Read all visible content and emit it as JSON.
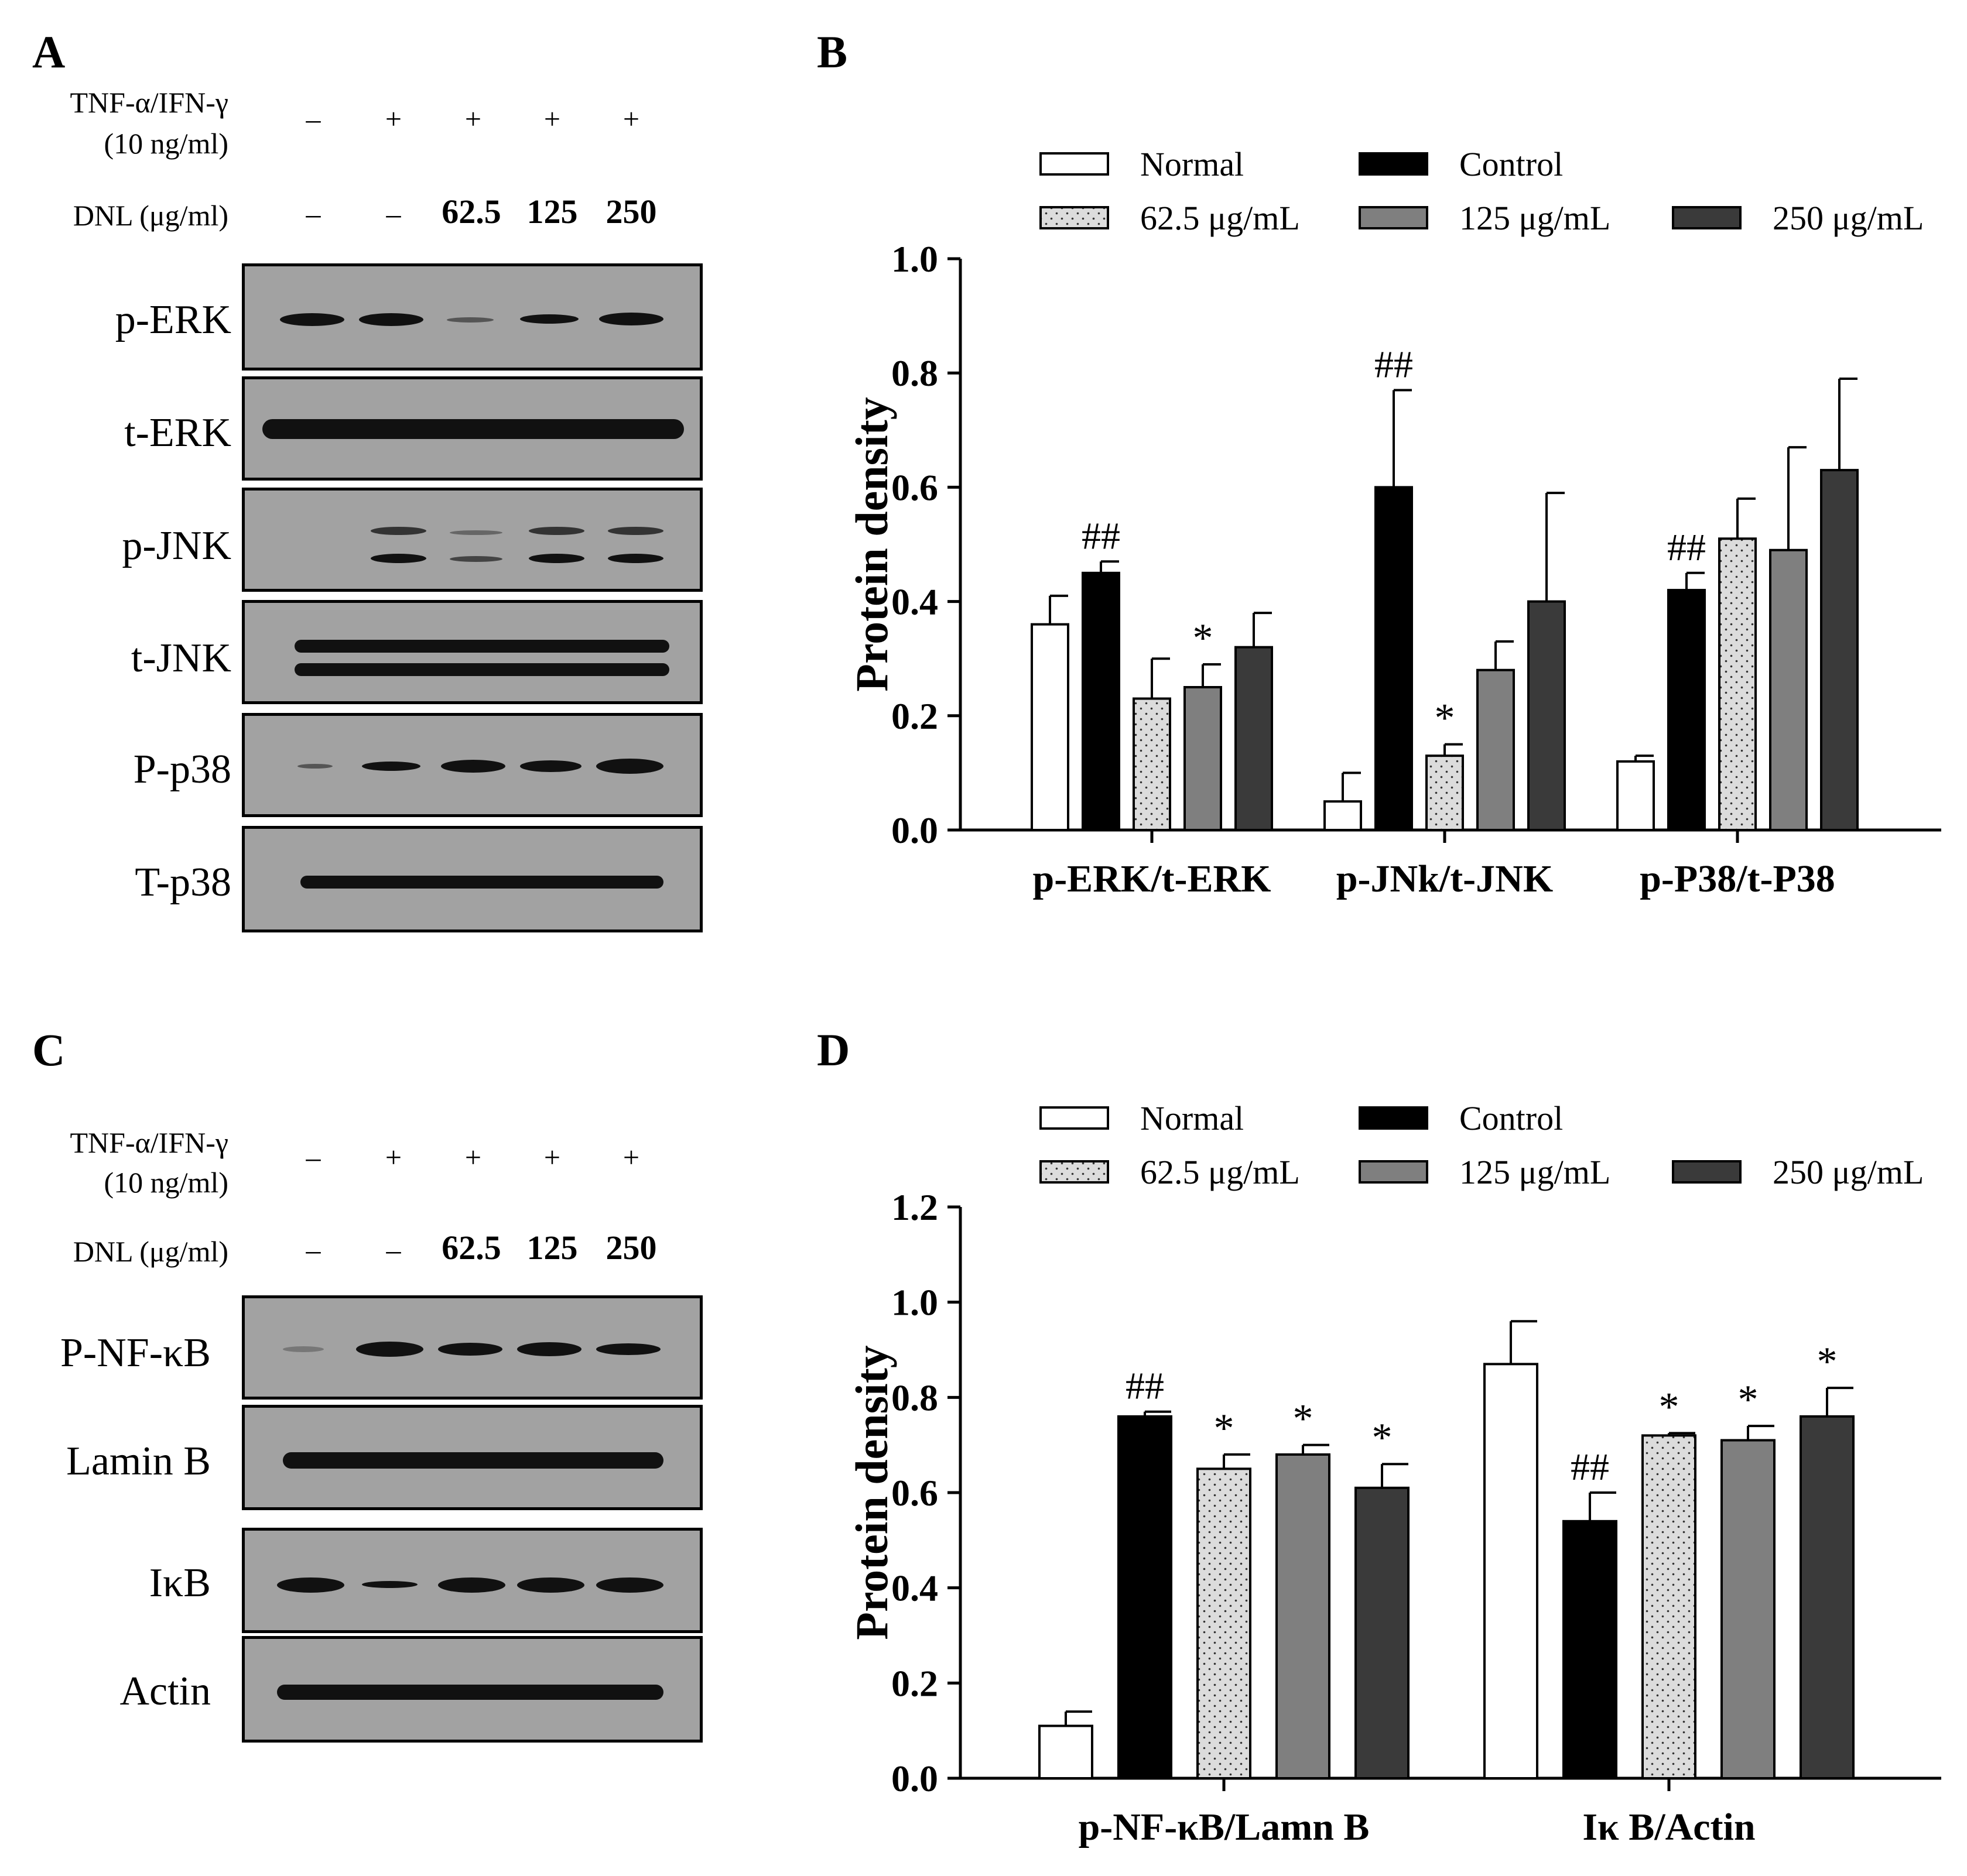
{
  "panels": {
    "a": "A",
    "b": "B",
    "c": "C",
    "d": "D"
  },
  "conditions": {
    "tnf_label_1": "TNF-α/IFN-γ",
    "tnf_label_2": "(10 ng/ml)",
    "dnl_label": "DNL (μg/ml)",
    "tnf_values": [
      "–",
      "+",
      "+",
      "+",
      "+"
    ],
    "dnl_values": [
      "–",
      "–",
      "62.5",
      "125",
      "250"
    ]
  },
  "blots_a": [
    "p-ERK",
    "t-ERK",
    "p-JNK",
    "t-JNK",
    "P-p38",
    "T-p38"
  ],
  "blots_c": [
    "P-NF-κB",
    "Lamin B",
    "IκB",
    "Actin"
  ],
  "legend": [
    "Normal",
    "Control",
    "62.5 μg/mL",
    "125 μg/mL",
    "250 μg/mL"
  ],
  "colors": {
    "normal": "#ffffff",
    "control": "#000000",
    "c62": "#dcdcdc",
    "c125": "#7f7f7f",
    "c250": "#3a3a3a"
  },
  "chart_data": [
    {
      "type": "bar",
      "panel": "B",
      "ylabel": "Protein density",
      "ylim": [
        0,
        1.0
      ],
      "yticks": [
        "0.0",
        "0.2",
        "0.4",
        "0.6",
        "0.8",
        "1.0"
      ],
      "categories": [
        "p-ERK/t-ERK",
        "p-JNk/t-JNK",
        "p-P38/t-P38"
      ],
      "series": [
        {
          "name": "Normal",
          "values": [
            0.36,
            0.05,
            0.12
          ],
          "errors": [
            0.05,
            0.05,
            0.01
          ],
          "marks": [
            "",
            "",
            ""
          ]
        },
        {
          "name": "Control",
          "values": [
            0.45,
            0.6,
            0.42
          ],
          "errors": [
            0.02,
            0.17,
            0.03
          ],
          "marks": [
            "##",
            "##",
            "##"
          ]
        },
        {
          "name": "62.5 μg/mL",
          "values": [
            0.23,
            0.13,
            0.51
          ],
          "errors": [
            0.07,
            0.02,
            0.07
          ],
          "marks": [
            "",
            "*",
            ""
          ]
        },
        {
          "name": "125 μg/mL",
          "values": [
            0.25,
            0.28,
            0.49
          ],
          "errors": [
            0.04,
            0.05,
            0.18
          ],
          "marks": [
            "*",
            "",
            ""
          ]
        },
        {
          "name": "250 μg/mL",
          "values": [
            0.32,
            0.4,
            0.63
          ],
          "errors": [
            0.06,
            0.19,
            0.16
          ],
          "marks": [
            "",
            "",
            ""
          ]
        }
      ]
    },
    {
      "type": "bar",
      "panel": "D",
      "ylabel": "Protein density",
      "ylim": [
        0,
        1.2
      ],
      "yticks": [
        "0.0",
        "0.2",
        "0.4",
        "0.6",
        "0.8",
        "1.0",
        "1.2"
      ],
      "categories": [
        "p-NF-κB/Lamn B",
        "Iκ B/Actin"
      ],
      "series": [
        {
          "name": "Normal",
          "values": [
            0.11,
            0.87
          ],
          "errors": [
            0.03,
            0.09
          ],
          "marks": [
            "",
            ""
          ]
        },
        {
          "name": "Control",
          "values": [
            0.76,
            0.54
          ],
          "errors": [
            0.01,
            0.06
          ],
          "marks": [
            "##",
            "##"
          ]
        },
        {
          "name": "62.5 μg/mL",
          "values": [
            0.65,
            0.72
          ],
          "errors": [
            0.03,
            0.005
          ],
          "marks": [
            "*",
            "*"
          ]
        },
        {
          "name": "125 μg/mL",
          "values": [
            0.68,
            0.71
          ],
          "errors": [
            0.02,
            0.03
          ],
          "marks": [
            "*",
            "*"
          ]
        },
        {
          "name": "250 μg/mL",
          "values": [
            0.61,
            0.76
          ],
          "errors": [
            0.05,
            0.06
          ],
          "marks": [
            "*",
            "*"
          ]
        }
      ]
    }
  ]
}
